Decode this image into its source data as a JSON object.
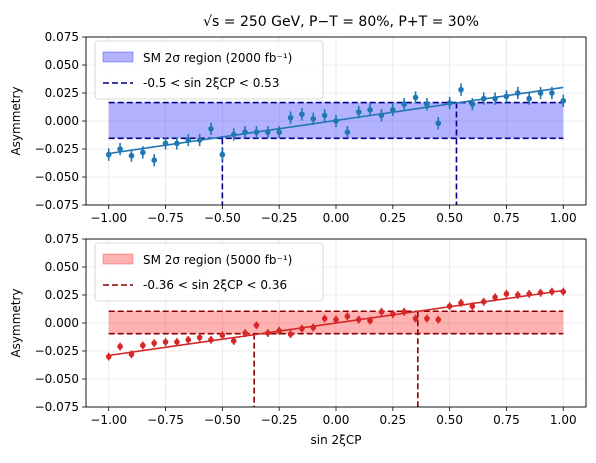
{
  "chart_data": [
    {
      "type": "scatter",
      "title": "√s = 250 GeV,  P−T = 80%,  P+T = 30%",
      "ylabel": "Asymmetry",
      "xlabel": "",
      "xlim": [
        -1.1,
        1.1
      ],
      "ylim": [
        -0.075,
        0.075
      ],
      "xticks": [
        "−1.00",
        "−0.75",
        "−0.50",
        "−0.25",
        "0.00",
        "0.25",
        "0.50",
        "0.75",
        "1.00"
      ],
      "yticks": [
        "−0.075",
        "−0.050",
        "−0.025",
        "0.000",
        "0.025",
        "0.050",
        "0.075"
      ],
      "grid": true,
      "legend_position": "top-left",
      "color": "#1f77b4",
      "band_color": "#0000ff",
      "line_color": "#00008b",
      "band": {
        "label": "SM 2σ region (2000 fb⁻¹)",
        "ymin": -0.0155,
        "ymax": 0.0165,
        "xmin": -1.0,
        "xmax": 1.0
      },
      "interval": {
        "label": "-0.5 < sin 2ξCP < 0.53",
        "low": -0.5,
        "high": 0.53
      },
      "fit": {
        "x": [
          -1.0,
          1.0
        ],
        "y": [
          -0.029,
          0.03
        ]
      },
      "points": {
        "x": [
          -1.0,
          -0.95,
          -0.9,
          -0.85,
          -0.8,
          -0.75,
          -0.7,
          -0.65,
          -0.6,
          -0.55,
          -0.5,
          -0.45,
          -0.4,
          -0.35,
          -0.3,
          -0.25,
          -0.2,
          -0.15,
          -0.1,
          -0.05,
          0.0,
          0.05,
          0.1,
          0.15,
          0.2,
          0.25,
          0.3,
          0.35,
          0.4,
          0.45,
          0.5,
          0.55,
          0.6,
          0.65,
          0.7,
          0.75,
          0.8,
          0.85,
          0.9,
          0.95,
          1.0
        ],
        "y": [
          -0.03,
          -0.025,
          -0.031,
          -0.028,
          -0.035,
          -0.02,
          -0.02,
          -0.017,
          -0.017,
          -0.007,
          -0.03,
          -0.012,
          -0.01,
          -0.01,
          -0.01,
          -0.01,
          0.003,
          0.006,
          0.002,
          0.005,
          0.0,
          -0.01,
          0.008,
          0.01,
          0.005,
          0.01,
          0.015,
          0.021,
          0.015,
          -0.002,
          0.016,
          0.028,
          0.015,
          0.02,
          0.02,
          0.022,
          0.025,
          0.02,
          0.025,
          0.025,
          0.018
        ],
        "err": [
          0.0055,
          0.0055,
          0.0055,
          0.0055,
          0.0055,
          0.0055,
          0.0055,
          0.0055,
          0.0055,
          0.0055,
          0.0055,
          0.0055,
          0.0055,
          0.0055,
          0.0055,
          0.0055,
          0.0055,
          0.0055,
          0.0055,
          0.0055,
          0.0055,
          0.0055,
          0.0055,
          0.0055,
          0.0055,
          0.0055,
          0.0055,
          0.0055,
          0.0055,
          0.0055,
          0.0055,
          0.0055,
          0.0055,
          0.0055,
          0.0055,
          0.0055,
          0.0055,
          0.0055,
          0.0055,
          0.0055,
          0.0055
        ]
      }
    },
    {
      "type": "scatter",
      "title": "",
      "ylabel": "Asymmetry",
      "xlabel": "sin 2ξCP",
      "xlim": [
        -1.1,
        1.1
      ],
      "ylim": [
        -0.075,
        0.075
      ],
      "xticks": [
        "−1.00",
        "−0.75",
        "−0.50",
        "−0.25",
        "0.00",
        "0.25",
        "0.50",
        "0.75",
        "1.00"
      ],
      "yticks": [
        "−0.075",
        "−0.050",
        "−0.025",
        "0.000",
        "0.025",
        "0.050",
        "0.075"
      ],
      "grid": true,
      "legend_position": "top-left",
      "color": "#d62728",
      "band_color": "#ff0000",
      "line_color": "#8b0000",
      "band": {
        "label": "SM 2σ region (5000 fb⁻¹)",
        "ymin": -0.0095,
        "ymax": 0.0105,
        "xmin": -1.0,
        "xmax": 1.0
      },
      "interval": {
        "label": "-0.36 < sin 2ξCP < 0.36",
        "low": -0.36,
        "high": 0.36
      },
      "fit": {
        "x": [
          -1.0,
          1.0
        ],
        "y": [
          -0.029,
          0.029
        ]
      },
      "points": {
        "x": [
          -1.0,
          -0.95,
          -0.9,
          -0.85,
          -0.8,
          -0.75,
          -0.7,
          -0.65,
          -0.6,
          -0.55,
          -0.5,
          -0.45,
          -0.4,
          -0.35,
          -0.3,
          -0.25,
          -0.2,
          -0.15,
          -0.1,
          -0.05,
          0.0,
          0.05,
          0.1,
          0.15,
          0.2,
          0.25,
          0.3,
          0.35,
          0.4,
          0.45,
          0.5,
          0.55,
          0.6,
          0.65,
          0.7,
          0.75,
          0.8,
          0.85,
          0.9,
          0.95,
          1.0
        ],
        "y": [
          -0.03,
          -0.021,
          -0.028,
          -0.02,
          -0.018,
          -0.017,
          -0.017,
          -0.015,
          -0.013,
          -0.015,
          -0.011,
          -0.016,
          -0.009,
          -0.002,
          -0.009,
          -0.007,
          -0.01,
          -0.005,
          -0.004,
          0.004,
          0.003,
          0.006,
          0.003,
          0.002,
          0.01,
          0.008,
          0.01,
          0.004,
          0.004,
          0.003,
          0.015,
          0.018,
          0.015,
          0.019,
          0.023,
          0.026,
          0.025,
          0.026,
          0.027,
          0.028,
          0.028
        ],
        "err": [
          0.0035,
          0.0035,
          0.0035,
          0.0035,
          0.0035,
          0.0035,
          0.0035,
          0.0035,
          0.0035,
          0.0035,
          0.0035,
          0.0035,
          0.0035,
          0.0035,
          0.0035,
          0.0035,
          0.0035,
          0.0035,
          0.0035,
          0.0035,
          0.0035,
          0.0035,
          0.0035,
          0.0035,
          0.0035,
          0.0035,
          0.0035,
          0.0035,
          0.0035,
          0.0035,
          0.0035,
          0.0035,
          0.0035,
          0.0035,
          0.0035,
          0.0035,
          0.0035,
          0.0035,
          0.0035,
          0.0035,
          0.0035
        ]
      }
    }
  ]
}
